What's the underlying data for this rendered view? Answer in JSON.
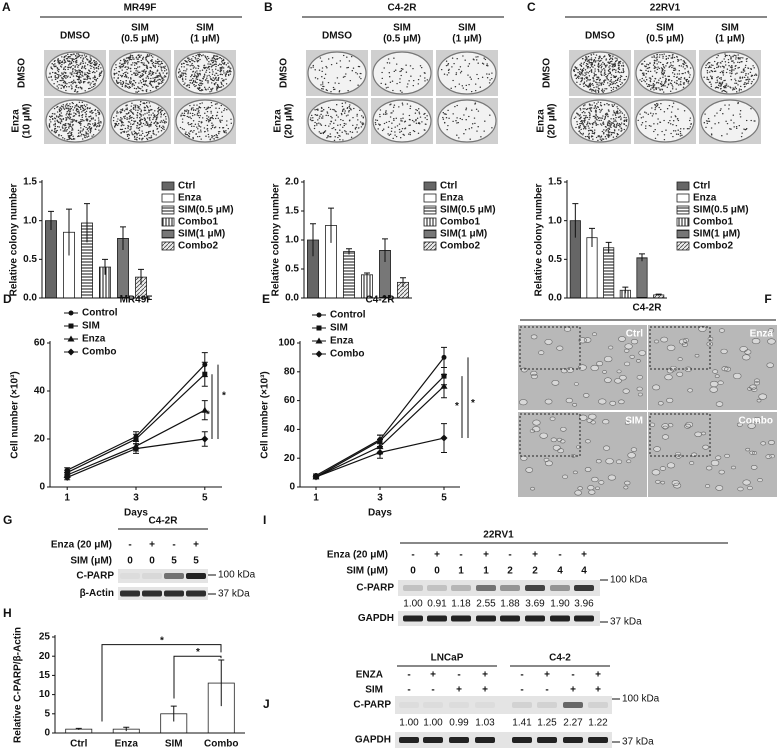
{
  "colony_panels": [
    {
      "letter": "A",
      "title": "MR49F",
      "columns": [
        [
          "DMSO"
        ],
        [
          "SIM",
          "(0.5 μM)"
        ],
        [
          "SIM",
          "(1 μM)"
        ]
      ],
      "rows": [
        [
          "DMSO"
        ],
        [
          "Enza",
          "(10 μM)"
        ]
      ]
    },
    {
      "letter": "B",
      "title": "C4-2R",
      "columns": [
        [
          "DMSO"
        ],
        [
          "SIM",
          "(0.5 μM)"
        ],
        [
          "SIM",
          "(1 μM)"
        ]
      ],
      "rows": [
        [
          "DMSO"
        ],
        [
          "Enza",
          "(20 μM)"
        ]
      ]
    },
    {
      "letter": "C",
      "title": "22RV1",
      "columns": [
        [
          "DMSO"
        ],
        [
          "SIM",
          "(0.5 μM)"
        ],
        [
          "SIM",
          "(1 μM)"
        ]
      ],
      "rows": [
        [
          "DMSO"
        ],
        [
          "Enza",
          "(20 μM)"
        ]
      ]
    }
  ],
  "chart_data": [
    {
      "type": "bar",
      "ylabel": "Relative colony number",
      "categories": [
        "Ctrl",
        "Enza",
        "SIM(0.5 μM)",
        "Combo1",
        "SIM(1 μM)",
        "Combo2"
      ],
      "values": [
        1.0,
        0.85,
        0.97,
        0.4,
        0.77,
        0.27
      ],
      "errors": [
        0.12,
        0.3,
        0.25,
        0.1,
        0.15,
        0.1
      ],
      "fills": [
        "solid",
        "white",
        "hlines",
        "vlines",
        "hdense",
        "diag"
      ],
      "ylim": [
        0,
        1.5
      ],
      "yticks": [
        {
          "value": 0,
          "label": "0.0"
        },
        0.5,
        {
          "value": 1,
          "label": "1.0"
        },
        {
          "value": 1.5,
          "label": "1.5"
        }
      ],
      "legend": "right"
    },
    {
      "type": "bar",
      "ylabel": "Relative colony number",
      "categories": [
        "Ctrl",
        "Enza",
        "SIM(0.5 μM)",
        "Combo1",
        "SIM(1 μM)",
        "Combo2"
      ],
      "values": [
        1.0,
        1.25,
        0.8,
        0.4,
        0.82,
        0.27
      ],
      "errors": [
        0.28,
        0.3,
        0.05,
        0.03,
        0.2,
        0.08
      ],
      "fills": [
        "solid",
        "white",
        "hlines",
        "vlines",
        "hdense",
        "diag"
      ],
      "ylim": [
        0,
        2
      ],
      "yticks": [
        {
          "value": 0,
          "label": "0.0"
        },
        0.5,
        {
          "value": 1,
          "label": "1.0"
        },
        1.5,
        {
          "value": 2,
          "label": "2.0"
        }
      ],
      "legend": "right"
    },
    {
      "type": "bar",
      "ylabel": "Relative colony number",
      "categories": [
        "Ctrl",
        "Enza",
        "SIM(0.5 μM)",
        "Combo1",
        "SIM(1 μM)",
        "Combo2"
      ],
      "values": [
        1.0,
        0.78,
        0.65,
        0.1,
        0.52,
        0.04
      ],
      "errors": [
        0.22,
        0.12,
        0.07,
        0.04,
        0.05,
        0.01
      ],
      "fills": [
        "solid",
        "white",
        "hlines",
        "vlines",
        "hdense",
        "diag"
      ],
      "ylim": [
        0,
        1.5
      ],
      "yticks": [
        {
          "value": 0,
          "label": "0.0"
        },
        0.5,
        {
          "value": 1,
          "label": "1.0"
        },
        1.5
      ],
      "legend": "right"
    },
    {
      "type": "line",
      "panel": "D",
      "title": "MR49F",
      "xlabel": "Days",
      "ylabel": "Cell number (×10³)",
      "x": [
        1,
        3,
        5
      ],
      "xlim": [
        0.5,
        5.5
      ],
      "xticks": [
        1,
        3,
        5
      ],
      "ylim": [
        0,
        60
      ],
      "yticks": [
        0,
        20,
        40,
        60
      ],
      "legend": "upper left",
      "series": [
        {
          "name": "Control",
          "marker": "circle",
          "color": "#111111",
          "values": [
            7,
            21,
            51
          ],
          "errors": [
            1,
            2,
            5
          ]
        },
        {
          "name": "SIM",
          "marker": "square",
          "color": "#111111",
          "values": [
            6,
            20,
            47
          ],
          "errors": [
            1,
            2,
            5
          ]
        },
        {
          "name": "Enza",
          "marker": "triangle",
          "color": "#111111",
          "values": [
            5,
            17,
            32
          ],
          "errors": [
            1,
            2,
            4
          ]
        },
        {
          "name": "Combo",
          "marker": "diamond",
          "color": "#111111",
          "values": [
            4,
            16,
            20
          ],
          "errors": [
            1,
            2,
            3
          ]
        }
      ],
      "annotations": [
        "*",
        "*"
      ]
    },
    {
      "type": "line",
      "panel": "E",
      "title": "C4-2R",
      "xlabel": "Days",
      "ylabel": "Cell number (×10³)",
      "x": [
        1,
        3,
        5
      ],
      "xlim": [
        0.5,
        5.5
      ],
      "xticks": [
        1,
        3,
        5
      ],
      "ylim": [
        0,
        100
      ],
      "yticks": [
        0,
        20,
        40,
        60,
        80,
        100
      ],
      "legend": "upper left",
      "series": [
        {
          "name": "Control",
          "marker": "circle",
          "color": "#111111",
          "values": [
            8,
            33,
            90
          ],
          "errors": [
            1,
            3,
            7
          ]
        },
        {
          "name": "SIM",
          "marker": "square",
          "color": "#111111",
          "values": [
            7,
            32,
            77
          ],
          "errors": [
            1,
            4,
            6
          ]
        },
        {
          "name": "Enza",
          "marker": "triangle",
          "color": "#111111",
          "values": [
            7,
            28,
            70
          ],
          "errors": [
            1,
            5,
            8
          ]
        },
        {
          "name": "Combo",
          "marker": "diamond",
          "color": "#111111",
          "values": [
            7,
            24,
            34
          ],
          "errors": [
            1,
            4,
            10
          ]
        }
      ],
      "annotations": [
        "*",
        "*"
      ]
    },
    {
      "type": "bar",
      "panel": "H",
      "ylabel": "Relative C-PARP/β-Actin",
      "categories": [
        "Ctrl",
        "Enza",
        "SIM",
        "Combo"
      ],
      "values": [
        1,
        1,
        5,
        13
      ],
      "errors": [
        0.2,
        0.5,
        2,
        6
      ],
      "fills": [
        "white",
        "white",
        "white",
        "white"
      ],
      "ylim": [
        0,
        25
      ],
      "yticks": [
        0,
        5,
        10,
        15,
        20,
        25
      ],
      "annotations": [
        "*",
        "*"
      ]
    }
  ],
  "microscopy": {
    "letter": "F",
    "title": "C4-2R",
    "labels": [
      "Ctrl",
      "Enza",
      "SIM",
      "Combo"
    ]
  },
  "blot_G": {
    "letter": "G",
    "groups": [
      "C4-2R"
    ],
    "conditions": [
      {
        "label": "Enza (20 μM)",
        "marks": [
          "-",
          "+",
          "-",
          "+"
        ]
      },
      {
        "label": "SIM (μM)",
        "marks": [
          "0",
          "0",
          "5",
          "5"
        ]
      }
    ],
    "bands": [
      "C-PARP",
      "β-Actin"
    ],
    "markers": [
      "100 kDa",
      "37 kDa"
    ]
  },
  "blot_I": {
    "letter": "I",
    "groups": [
      "22RV1"
    ],
    "conditions": [
      {
        "label": "Enza (20 μM)",
        "marks": [
          "-",
          "+",
          "-",
          "+",
          "-",
          "+",
          "-",
          "+"
        ]
      },
      {
        "label": "SIM (μM)",
        "marks": [
          "0",
          "0",
          "1",
          "1",
          "2",
          "2",
          "4",
          "4"
        ]
      }
    ],
    "bands": [
      "C-PARP",
      "GAPDH"
    ],
    "quant": [
      "1.00",
      "0.91",
      "1.18",
      "2.55",
      "1.88",
      "3.69",
      "1.90",
      "3.96"
    ],
    "markers": [
      "100 kDa",
      "37 kDa"
    ]
  },
  "blot_J": {
    "letter": "J",
    "groups": [
      "LNCaP",
      "C4-2"
    ],
    "conditions": [
      {
        "label": "ENZA",
        "marks": [
          "-",
          "+",
          "-",
          "+",
          "-",
          "+",
          "-",
          "+"
        ]
      },
      {
        "label": "SIM",
        "marks": [
          "-",
          "-",
          "+",
          "+",
          "-",
          "-",
          "+",
          "+"
        ]
      }
    ],
    "bands": [
      "C-PARP",
      "GAPDH"
    ],
    "quant": [
      "1.00",
      "1.00",
      "0.99",
      "1.03",
      "1.41",
      "1.25",
      "2.27",
      "1.22"
    ],
    "markers": [
      "100 kDa",
      "37 kDa"
    ]
  }
}
